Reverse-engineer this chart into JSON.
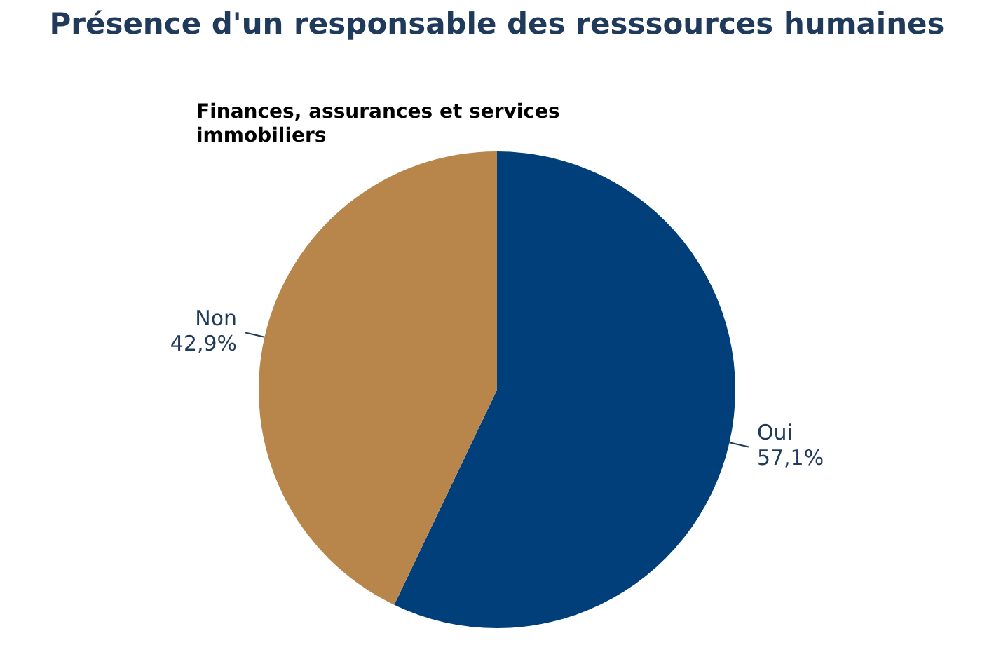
{
  "chart_data": {
    "type": "pie",
    "title": "Présence d'un responsable des resssources humaines",
    "subtitle": "Finances, assurances et services immobiliers",
    "categories": [
      "Oui",
      "Non"
    ],
    "values": [
      57.1,
      42.9
    ],
    "colors": [
      "#003f7a",
      "#b8864a"
    ],
    "value_labels": [
      "57,1%",
      "42,9%"
    ],
    "legend": false
  }
}
